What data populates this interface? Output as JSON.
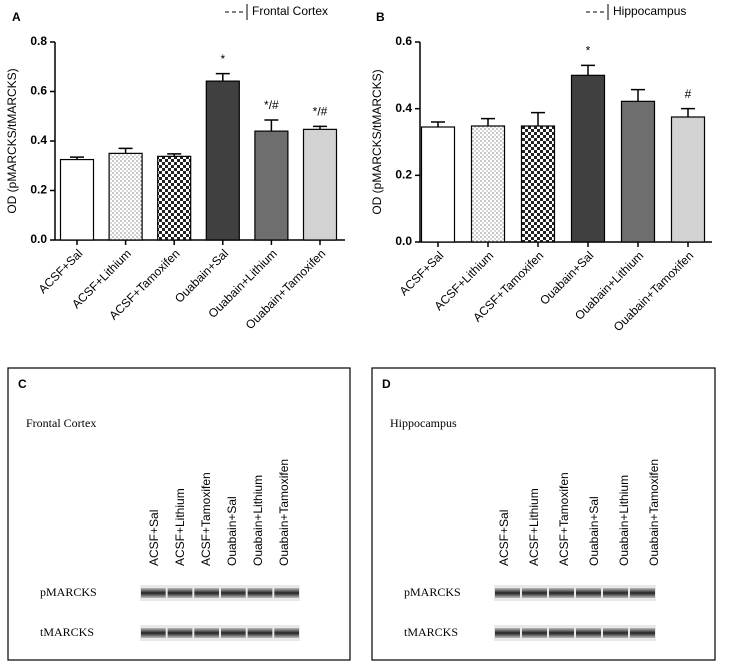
{
  "chart_data": [
    {
      "type": "bar",
      "panel_label": "A",
      "legend_label": "Frontal Cortex",
      "ylabel": "OD (pMARCKS/tMARCKS)",
      "categories": [
        "ACSF+Sal",
        "ACSF+Lithium",
        "ACSF+Tamoxifen",
        "Ouabain+Sal",
        "Ouabain+Lithium",
        "Ouabain+Tamoxifen"
      ],
      "values": [
        0.325,
        0.35,
        0.338,
        0.642,
        0.44,
        0.447
      ],
      "errors": [
        0.01,
        0.02,
        0.01,
        0.03,
        0.045,
        0.012
      ],
      "annotations": [
        null,
        null,
        null,
        "*",
        "*/#",
        "*/#"
      ],
      "fills": [
        "#ffffff",
        "dots",
        "checker",
        "#404040",
        "#6e6e6e",
        "#d2d2d2"
      ],
      "ylim": [
        0,
        0.8
      ],
      "yticks": [
        {
          "value": 0,
          "label": "0.0"
        },
        0.2,
        0.4,
        0.6,
        0.8
      ]
    },
    {
      "type": "bar",
      "panel_label": "B",
      "legend_label": "Hippocampus",
      "ylabel": "OD (pMARCKS/tMARCKS)",
      "categories": [
        "ACSF+Sal",
        "ACSF+Lithium",
        "ACSF+Tamoxifen",
        "Ouabain+Sal",
        "Ouabain+Lithium",
        "Ouabain+Tamoxifen"
      ],
      "values": [
        0.345,
        0.348,
        0.348,
        0.5,
        0.422,
        0.375
      ],
      "errors": [
        0.015,
        0.022,
        0.04,
        0.03,
        0.035,
        0.025
      ],
      "annotations": [
        null,
        null,
        null,
        "*",
        null,
        "#"
      ],
      "fills": [
        "#ffffff",
        "dots",
        "checker",
        "#404040",
        "#6e6e6e",
        "#d2d2d2"
      ],
      "ylim": [
        0,
        0.6
      ],
      "yticks": [
        {
          "value": 0,
          "label": "0.0"
        },
        0.2,
        0.4,
        0.6
      ]
    }
  ],
  "blots": [
    {
      "panel_label": "C",
      "title": "Frontal Cortex",
      "lanes": [
        "ACSF+Sal",
        "ACSF+Lithium",
        "ACSF+Tamoxifen",
        "Ouabain+Sal",
        "Ouabain+Lithium",
        "Ouabain+Tamoxifen"
      ],
      "rows": [
        "pMARCKS",
        "tMARCKS"
      ]
    },
    {
      "panel_label": "D",
      "title": "Hippocampus",
      "lanes": [
        "ACSF+Sal",
        "ACSF+Lithium",
        "ACSF+Tamoxifen",
        "Ouabain+Sal",
        "Ouabain+Lithium",
        "Ouabain+Tamoxifen"
      ],
      "rows": [
        "pMARCKS",
        "tMARCKS"
      ]
    }
  ]
}
